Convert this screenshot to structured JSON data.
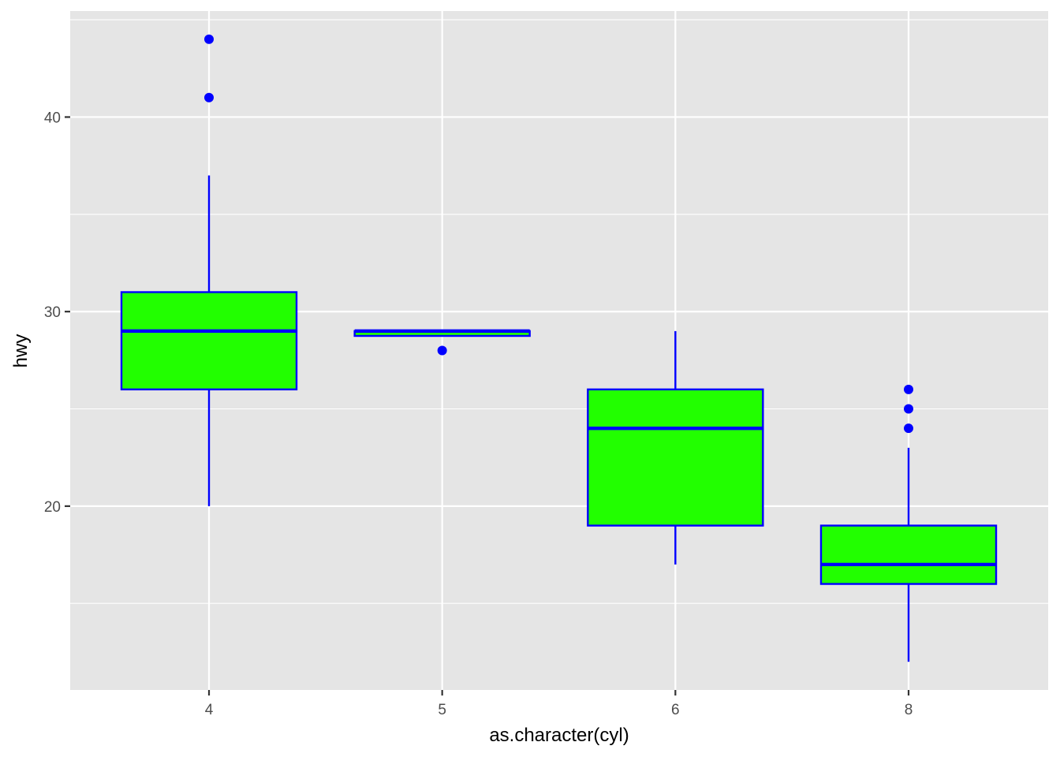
{
  "chart_data": {
    "type": "boxplot",
    "title": "",
    "xlabel": "as.character(cyl)",
    "ylabel": "hwy",
    "categories": [
      "4",
      "5",
      "6",
      "8"
    ],
    "ylim": [
      10.55,
      45.45
    ],
    "y_ticks": [
      20,
      30,
      40
    ],
    "grid": true,
    "style": {
      "panel_background": "#e5e5e5",
      "grid_color": "#ffffff",
      "box_fill": "#22ff00",
      "box_outline": "#0000ff",
      "outlier_color": "#0000ff"
    },
    "boxes": [
      {
        "category": "4",
        "whisker_low": 20,
        "q1": 26,
        "median": 29,
        "q3": 31,
        "whisker_high": 37,
        "outliers": [
          41,
          44
        ]
      },
      {
        "category": "5",
        "whisker_low": 28.75,
        "q1": 28.75,
        "median": 29,
        "q3": 29,
        "whisker_high": 29,
        "outliers": [
          28
        ]
      },
      {
        "category": "6",
        "whisker_low": 17,
        "q1": 19,
        "median": 24,
        "q3": 26,
        "whisker_high": 29,
        "outliers": []
      },
      {
        "category": "8",
        "whisker_low": 12,
        "q1": 16,
        "median": 17,
        "q3": 19,
        "whisker_high": 23,
        "outliers": [
          24,
          25,
          26
        ]
      }
    ]
  }
}
